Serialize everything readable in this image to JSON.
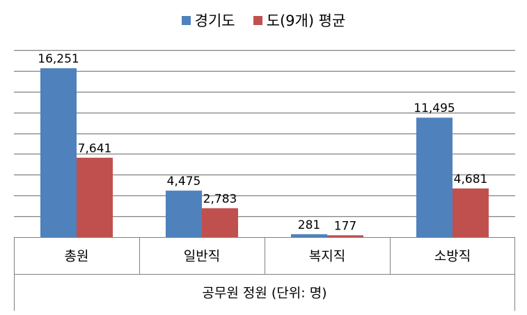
{
  "colors": {
    "series1": "#4F81BD",
    "series2": "#C0504D",
    "grid": "#7f7f7f",
    "axis": "#808080"
  },
  "chart_data": {
    "type": "bar",
    "title": "",
    "xlabel": "공무원 정원 (단위: 명)",
    "ylabel": "",
    "categories": [
      "총원",
      "일반직",
      "복지직",
      "소방직"
    ],
    "series": [
      {
        "name": "경기도",
        "values": [
          16251,
          4475,
          281,
          11495
        ],
        "labels": [
          "16,251",
          "4,475",
          "281",
          "11,495"
        ]
      },
      {
        "name": "도(9개) 평균",
        "values": [
          7641,
          2783,
          177,
          4681
        ],
        "labels": [
          "7,641",
          "2,783",
          "177",
          "4,681"
        ]
      }
    ],
    "ylim": [
      0,
      18000
    ],
    "y_gridline_step": 2000,
    "y_tick_labels_shown": false,
    "grid": true,
    "legend_position": "top"
  }
}
